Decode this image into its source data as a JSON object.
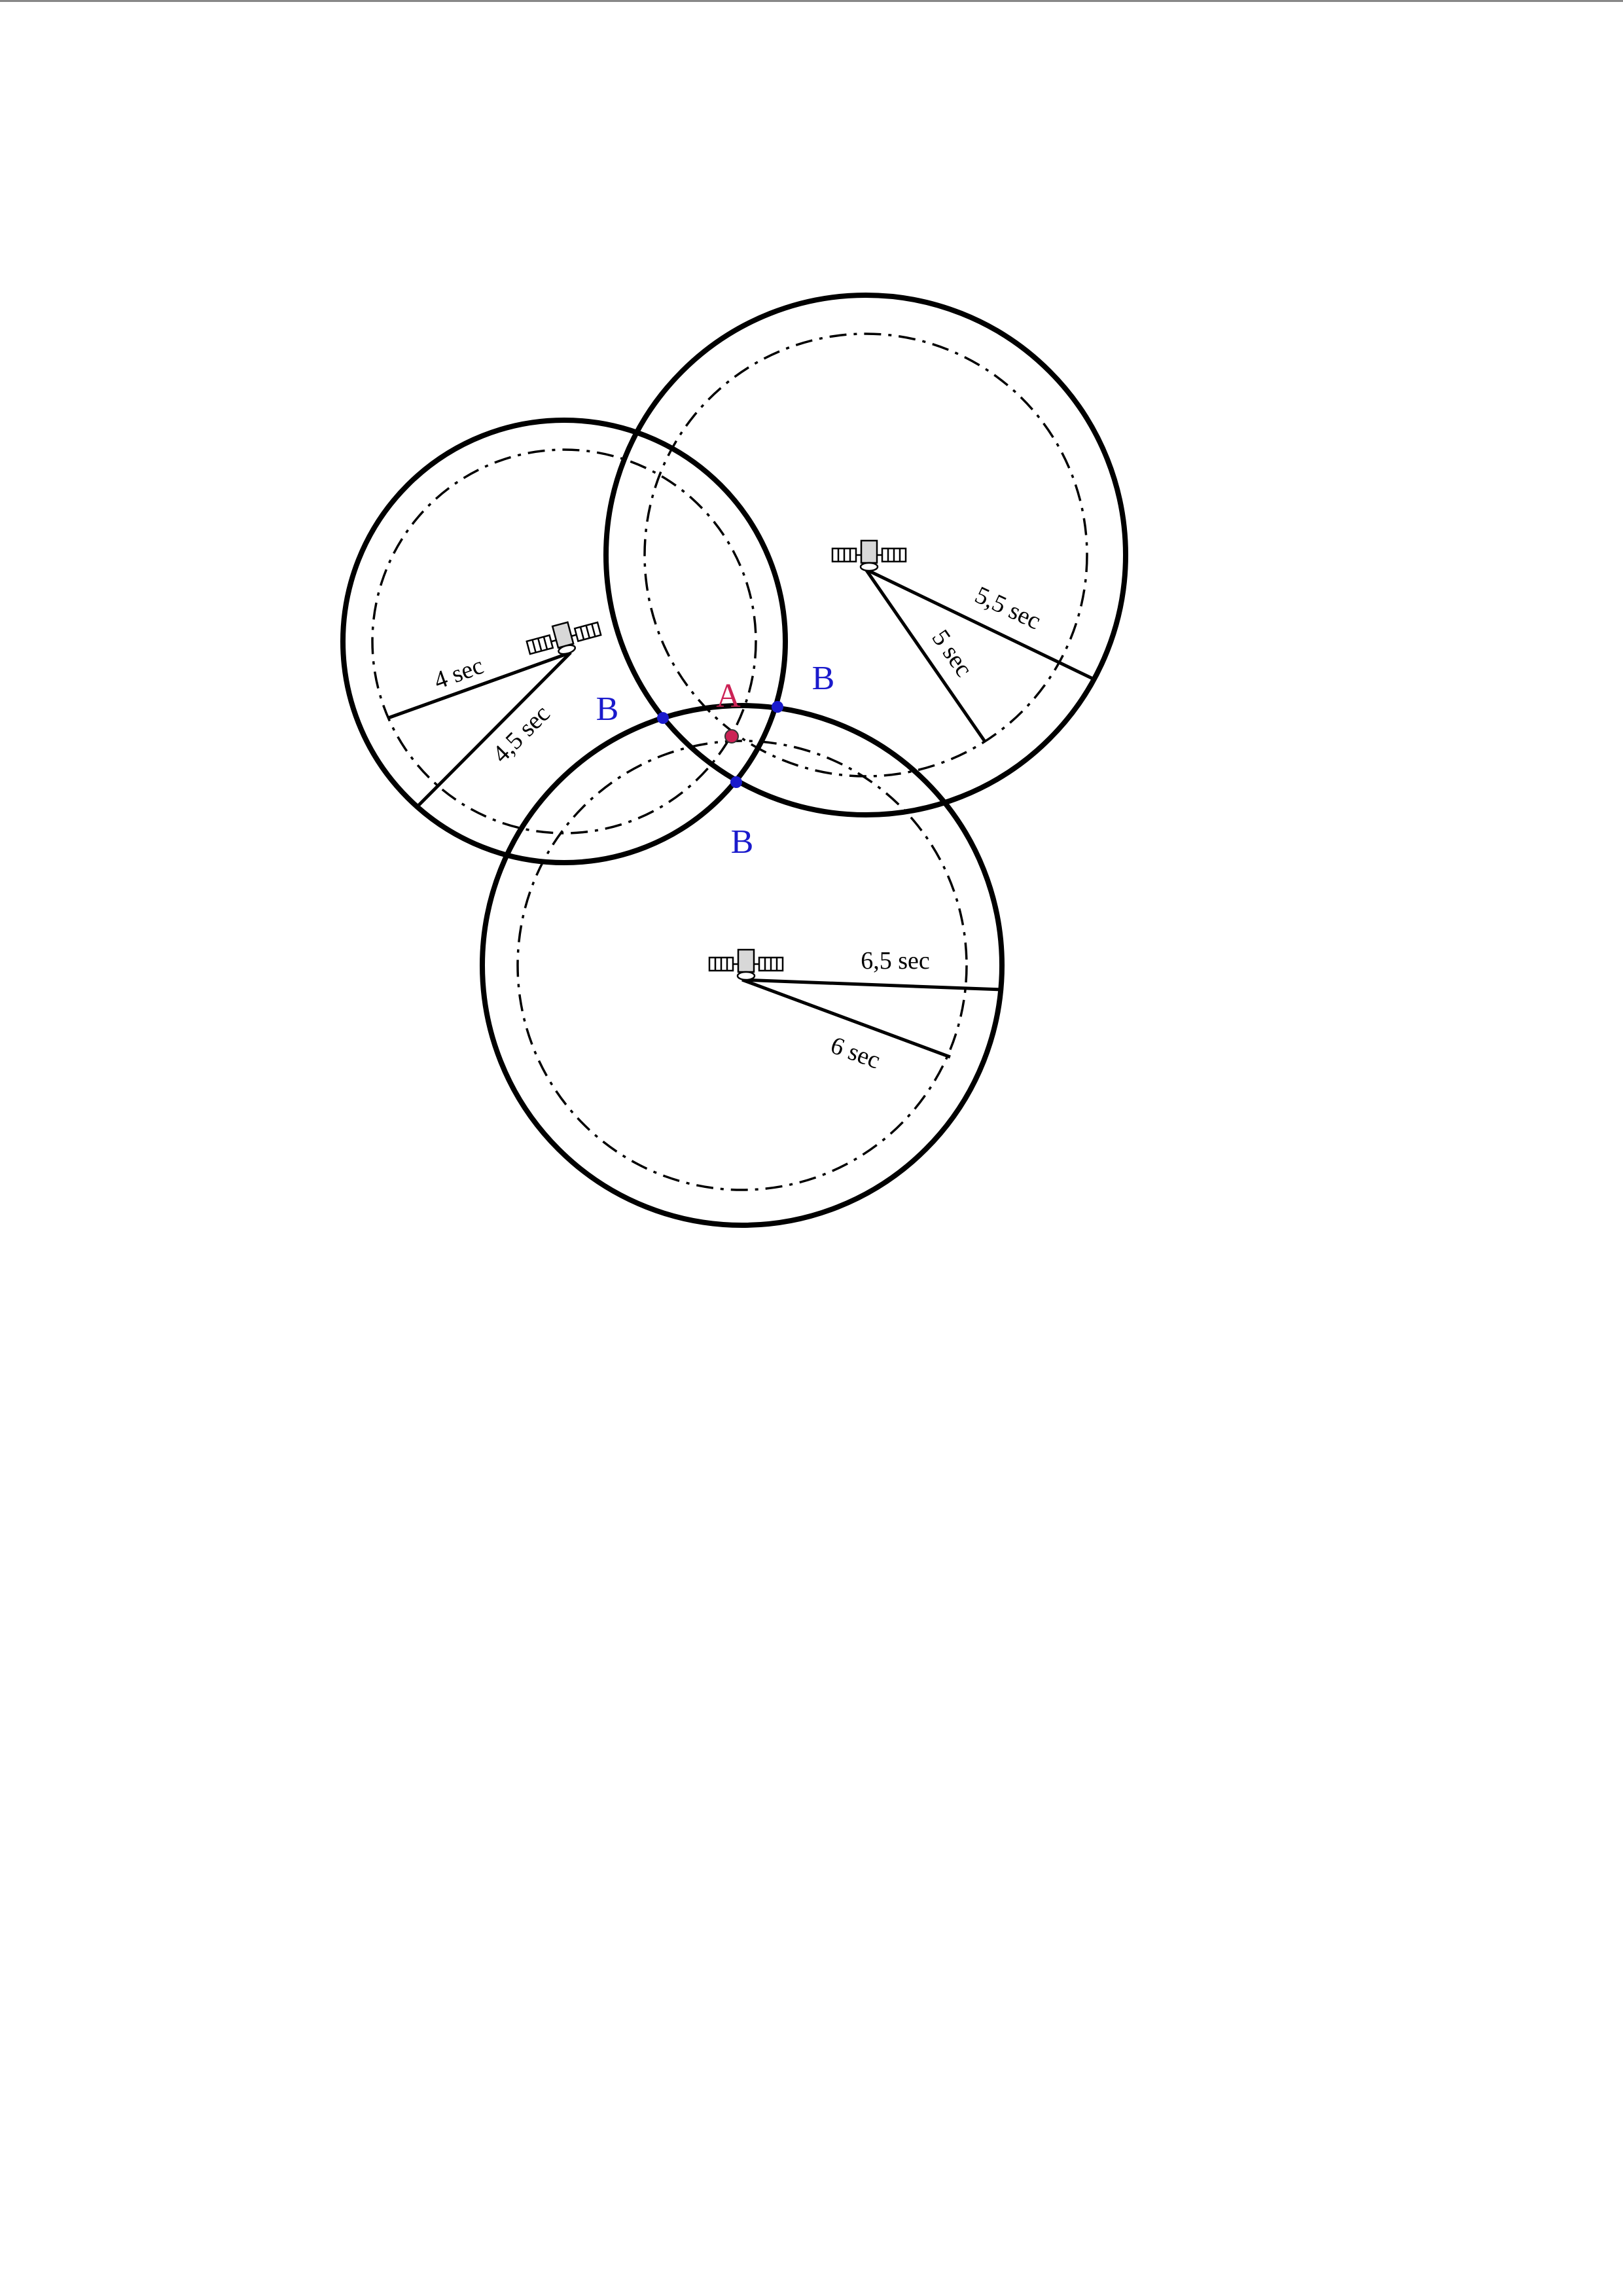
{
  "diagram": {
    "satellites": [
      {
        "id": "left",
        "outer_label": "4,5  sec",
        "inner_label": "4  sec"
      },
      {
        "id": "right",
        "outer_label": "5,5  sec",
        "inner_label": "5 sec"
      },
      {
        "id": "bottom",
        "outer_label": "6,5  sec",
        "inner_label": "6 sec"
      }
    ],
    "points": {
      "true_position": {
        "label": "A",
        "color": "#cc2255"
      },
      "intersections": [
        {
          "label": "B",
          "color": "#1a1acc"
        },
        {
          "label": "B",
          "color": "#1a1acc"
        },
        {
          "label": "B",
          "color": "#1a1acc"
        }
      ]
    },
    "colors": {
      "stroke": "#000000",
      "intersection_points": "#1a1acc",
      "true_position": "#cc2255"
    },
    "icons": [
      "satellite-icon"
    ]
  }
}
